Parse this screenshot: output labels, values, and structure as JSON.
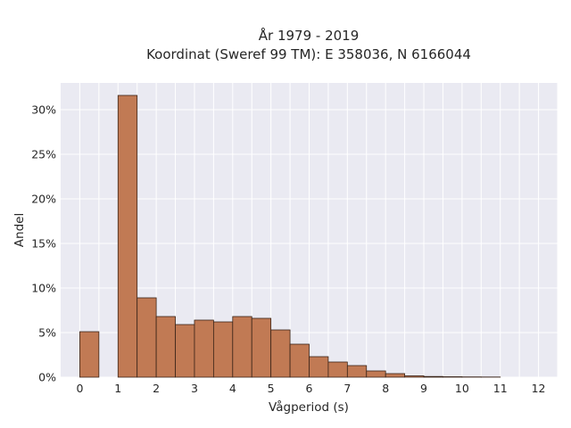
{
  "chart_data": {
    "type": "bar",
    "title_line1": "År 1979 - 2019",
    "title_line2": "Koordinat (Sweref 99 TM): E 358036, N 6166044",
    "xlabel": "Vågperiod (s)",
    "ylabel": "Andel",
    "xlim": [
      -0.5,
      12.5
    ],
    "ylim": [
      0,
      0.33
    ],
    "x_ticks": [
      0,
      1,
      2,
      3,
      4,
      5,
      6,
      7,
      8,
      9,
      10,
      11,
      12
    ],
    "y_ticks": [
      0,
      0.05,
      0.1,
      0.15,
      0.2,
      0.25,
      0.3
    ],
    "y_tick_labels": [
      "0%",
      "5%",
      "10%",
      "15%",
      "20%",
      "25%",
      "30%"
    ],
    "bin_width": 0.5,
    "bins": [
      {
        "start": 0.0,
        "value": 0.051
      },
      {
        "start": 1.0,
        "value": 0.316
      },
      {
        "start": 1.5,
        "value": 0.089
      },
      {
        "start": 2.0,
        "value": 0.068
      },
      {
        "start": 2.5,
        "value": 0.059
      },
      {
        "start": 3.0,
        "value": 0.064
      },
      {
        "start": 3.5,
        "value": 0.062
      },
      {
        "start": 4.0,
        "value": 0.068
      },
      {
        "start": 4.5,
        "value": 0.066
      },
      {
        "start": 5.0,
        "value": 0.053
      },
      {
        "start": 5.5,
        "value": 0.037
      },
      {
        "start": 6.0,
        "value": 0.023
      },
      {
        "start": 6.5,
        "value": 0.017
      },
      {
        "start": 7.0,
        "value": 0.013
      },
      {
        "start": 7.5,
        "value": 0.007
      },
      {
        "start": 8.0,
        "value": 0.004
      },
      {
        "start": 8.5,
        "value": 0.0015
      },
      {
        "start": 9.0,
        "value": 0.0008
      },
      {
        "start": 9.5,
        "value": 0.0005
      },
      {
        "start": 10.0,
        "value": 0.0003
      },
      {
        "start": 10.5,
        "value": 0.0002
      }
    ],
    "bar_color": "#c17a54",
    "plot_background": "#eaeaf2",
    "grid": true,
    "legend": "none"
  }
}
